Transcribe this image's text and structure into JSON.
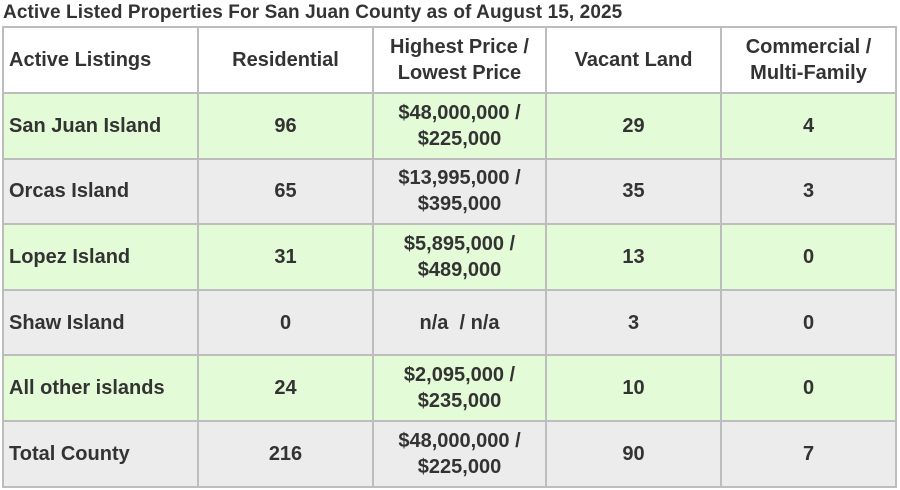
{
  "title": "Active Listed Properties For San Juan County as of August 15, 2025",
  "headers": {
    "listings": "Active Listings",
    "residential": "Residential",
    "price_line1": "Highest Price /",
    "price_line2": "Lowest Price",
    "vacant": "Vacant Land",
    "commercial_line1": "Commercial /",
    "commercial_line2": "Multi-Family"
  },
  "rows": [
    {
      "name": "San Juan Island",
      "residential": "96",
      "price_high": "$48,000,000 /",
      "price_low": "$225,000",
      "vacant": "29",
      "commercial": "4"
    },
    {
      "name": "Orcas Island",
      "residential": "65",
      "price_high": "$13,995,000 /",
      "price_low": "$395,000",
      "vacant": "35",
      "commercial": "3"
    },
    {
      "name": "Lopez Island",
      "residential": "31",
      "price_high": "$5,895,000 /",
      "price_low": "$489,000",
      "vacant": "13",
      "commercial": "0"
    },
    {
      "name": "Shaw Island",
      "residential": "0",
      "price_high": "n/a  / n/a",
      "price_low": "",
      "vacant": "3",
      "commercial": "0"
    },
    {
      "name": "All other islands",
      "residential": "24",
      "price_high": "$2,095,000 /",
      "price_low": "$235,000",
      "vacant": "10",
      "commercial": "0"
    },
    {
      "name": "Total County",
      "residential": "216",
      "price_high": "$48,000,000 /",
      "price_low": "$225,000",
      "vacant": "90",
      "commercial": "7"
    }
  ],
  "colors": {
    "row_green": "#e3fbd7",
    "row_grey": "#ececec",
    "text": "#333333",
    "border": "#bdbdbd"
  }
}
